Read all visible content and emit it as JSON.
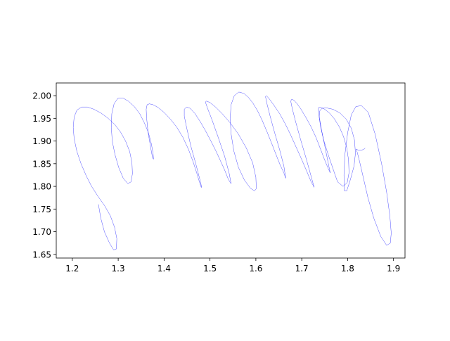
{
  "chart_data": {
    "type": "line",
    "title": "",
    "xlabel": "",
    "ylabel": "",
    "xlim": [
      1.165,
      1.925
    ],
    "ylim": [
      2.028,
      1.642
    ],
    "y_inverted": true,
    "grid": false,
    "line_color": "#0000ff",
    "x_ticks": [
      1.2,
      1.3,
      1.4,
      1.5,
      1.6,
      1.7,
      1.8,
      1.9
    ],
    "x_tick_labels": [
      "1.2",
      "1.3",
      "1.4",
      "1.5",
      "1.6",
      "1.7",
      "1.8",
      "1.9"
    ],
    "y_ticks": [
      1.65,
      1.7,
      1.75,
      1.8,
      1.85,
      1.9,
      1.95,
      2.0
    ],
    "y_tick_labels": [
      "1.65",
      "1.70",
      "1.75",
      "1.80",
      "1.85",
      "1.90",
      "1.95",
      "2.00"
    ],
    "series": [
      {
        "x": [
          1.257,
          1.262,
          1.27,
          1.281,
          1.29,
          1.296,
          1.297,
          1.292,
          1.283,
          1.27,
          1.256,
          1.242,
          1.23,
          1.219,
          1.21,
          1.204,
          1.202,
          1.204,
          1.21,
          1.22,
          1.233,
          1.247,
          1.262,
          1.277,
          1.292,
          1.305,
          1.316,
          1.325,
          1.33,
          1.331,
          1.328,
          1.321,
          1.311,
          1.301,
          1.293,
          1.287,
          1.285,
          1.286,
          1.291,
          1.299,
          1.31,
          1.322,
          1.335,
          1.347,
          1.357,
          1.366,
          1.372,
          1.376,
          1.377,
          1.375,
          1.37,
          1.365,
          1.362,
          1.361,
          1.363,
          1.368,
          1.376,
          1.387,
          1.4,
          1.414,
          1.428,
          1.441,
          1.453,
          1.463,
          1.471,
          1.477,
          1.481,
          1.482,
          1.478,
          1.469,
          1.458,
          1.449,
          1.444,
          1.444,
          1.449,
          1.457,
          1.467,
          1.478,
          1.49,
          1.502,
          1.513,
          1.523,
          1.532,
          1.539,
          1.544,
          1.546,
          1.542,
          1.532,
          1.518,
          1.504,
          1.494,
          1.49,
          1.492,
          1.5,
          1.512,
          1.527,
          1.544,
          1.562,
          1.579,
          1.593,
          1.6,
          1.601,
          1.597,
          1.588,
          1.575,
          1.562,
          1.552,
          1.546,
          1.544,
          1.546,
          1.553,
          1.563,
          1.574,
          1.584,
          1.594,
          1.604,
          1.614,
          1.624,
          1.634,
          1.644,
          1.653,
          1.661,
          1.665,
          1.661,
          1.652,
          1.641,
          1.631,
          1.624,
          1.621,
          1.623,
          1.63,
          1.64,
          1.652,
          1.664,
          1.676,
          1.688,
          1.7,
          1.711,
          1.72,
          1.726,
          1.727,
          1.721,
          1.71,
          1.697,
          1.686,
          1.679,
          1.676,
          1.678,
          1.683,
          1.69,
          1.699,
          1.709,
          1.72,
          1.731,
          1.741,
          1.75,
          1.757,
          1.761,
          1.762,
          1.757,
          1.75,
          1.743,
          1.738,
          1.736,
          1.737,
          1.742,
          1.75,
          1.76,
          1.771,
          1.782,
          1.791,
          1.798,
          1.802,
          1.803,
          1.799,
          1.79,
          1.778,
          1.767,
          1.756,
          1.747,
          1.741,
          1.738,
          1.739,
          1.744,
          1.754,
          1.768,
          1.783,
          1.797,
          1.808,
          1.815,
          1.817,
          1.814,
          1.806,
          1.798,
          1.793,
          1.792,
          1.794,
          1.8,
          1.808,
          1.818,
          1.83,
          1.845,
          1.86,
          1.874,
          1.885,
          1.892,
          1.895,
          1.893,
          1.885,
          1.872,
          1.857,
          1.844,
          1.834,
          1.826,
          1.821,
          1.818,
          1.819,
          1.823,
          1.829,
          1.834,
          1.838
        ],
        "y": [
          1.76,
          1.73,
          1.7,
          1.675,
          1.66,
          1.662,
          1.685,
          1.71,
          1.735,
          1.758,
          1.778,
          1.8,
          1.824,
          1.85,
          1.877,
          1.905,
          1.93,
          1.953,
          1.968,
          1.975,
          1.975,
          1.97,
          1.962,
          1.951,
          1.937,
          1.92,
          1.9,
          1.877,
          1.852,
          1.828,
          1.81,
          1.806,
          1.818,
          1.842,
          1.87,
          1.9,
          1.93,
          1.96,
          1.982,
          1.994,
          1.995,
          1.988,
          1.976,
          1.96,
          1.94,
          1.918,
          1.895,
          1.873,
          1.86,
          1.862,
          1.89,
          1.92,
          1.95,
          1.97,
          1.98,
          1.982,
          1.98,
          1.974,
          1.963,
          1.948,
          1.93,
          1.908,
          1.882,
          1.855,
          1.83,
          1.81,
          1.798,
          1.798,
          1.815,
          1.85,
          1.89,
          1.93,
          1.955,
          1.97,
          1.975,
          1.972,
          1.961,
          1.944,
          1.923,
          1.9,
          1.878,
          1.856,
          1.836,
          1.818,
          1.809,
          1.806,
          1.828,
          1.866,
          1.908,
          1.948,
          1.974,
          1.986,
          1.988,
          1.985,
          1.975,
          1.96,
          1.94,
          1.915,
          1.885,
          1.852,
          1.82,
          1.795,
          1.79,
          1.796,
          1.814,
          1.842,
          1.878,
          1.916,
          1.95,
          1.98,
          2.0,
          2.008,
          2.005,
          1.996,
          1.983,
          1.966,
          1.945,
          1.921,
          1.896,
          1.87,
          1.847,
          1.83,
          1.818,
          1.845,
          1.88,
          1.918,
          1.955,
          1.983,
          1.998,
          2.0,
          1.992,
          1.978,
          1.96,
          1.938,
          1.913,
          1.886,
          1.859,
          1.833,
          1.811,
          1.8,
          1.798,
          1.82,
          1.86,
          1.905,
          1.945,
          1.973,
          1.988,
          1.992,
          1.99,
          1.982,
          1.969,
          1.952,
          1.932,
          1.908,
          1.882,
          1.858,
          1.841,
          1.832,
          1.83,
          1.855,
          1.89,
          1.925,
          1.954,
          1.97,
          1.974,
          1.974,
          1.97,
          1.962,
          1.949,
          1.931,
          1.91,
          1.885,
          1.858,
          1.83,
          1.808,
          1.8,
          1.81,
          1.842,
          1.875,
          1.905,
          1.932,
          1.952,
          1.966,
          1.972,
          1.973,
          1.97,
          1.962,
          1.948,
          1.928,
          1.902,
          1.873,
          1.845,
          1.815,
          1.79,
          1.79,
          1.825,
          1.87,
          1.918,
          1.958,
          1.976,
          1.978,
          1.963,
          1.915,
          1.85,
          1.787,
          1.735,
          1.697,
          1.675,
          1.67,
          1.69,
          1.73,
          1.776,
          1.82,
          1.855,
          1.875,
          1.882,
          1.882,
          1.88,
          1.88,
          1.881,
          1.884
        ]
      }
    ]
  }
}
